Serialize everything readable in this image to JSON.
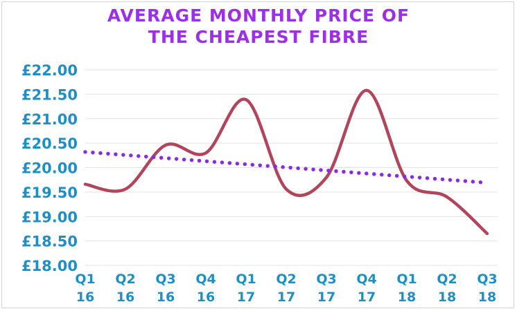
{
  "chart_data": {
    "type": "line",
    "title_lines": [
      "AVERAGE MONTHLY PRICE OF",
      "THE CHEAPEST FIBRE"
    ],
    "categories": [
      [
        "Q1",
        "16"
      ],
      [
        "Q2",
        "16"
      ],
      [
        "Q3",
        "16"
      ],
      [
        "Q4",
        "16"
      ],
      [
        "Q1",
        "17"
      ],
      [
        "Q2",
        "17"
      ],
      [
        "Q3",
        "17"
      ],
      [
        "Q4",
        "17"
      ],
      [
        "Q1",
        "18"
      ],
      [
        "Q2",
        "18"
      ],
      [
        "Q3",
        "18"
      ]
    ],
    "series": [
      {
        "values": [
          19.66,
          19.56,
          20.46,
          20.3,
          21.39,
          19.56,
          19.8,
          21.58,
          19.73,
          19.4,
          18.65
        ],
        "color": "#b0455c",
        "style": "smooth"
      },
      {
        "values": [
          20.32,
          20.26,
          20.19,
          20.13,
          20.07,
          20.0,
          19.94,
          19.88,
          19.82,
          19.76,
          19.69
        ],
        "color": "#8a2be2",
        "style": "dotted-trendline"
      }
    ],
    "y_ticks": [
      "£22.00",
      "£21.50",
      "£21.00",
      "£20.50",
      "£20.00",
      "£19.50",
      "£19.00",
      "£18.50",
      "£18.00"
    ],
    "ylim": [
      18.0,
      22.0
    ],
    "grid": true,
    "legend": "none",
    "xlabel": "",
    "ylabel": ""
  }
}
